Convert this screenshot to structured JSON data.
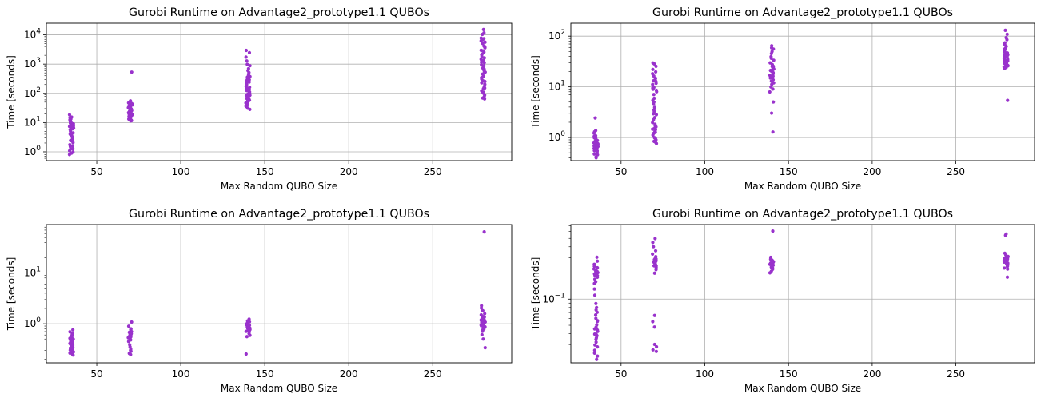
{
  "chart_data": [
    {
      "type": "scatter",
      "title": "Gurobi Runtime on Advantage2_prototype1.1 QUBOs",
      "xlabel": "Max Random QUBO Size",
      "ylabel": "Time [seconds]",
      "yscale": "log",
      "xlim": [
        20,
        297
      ],
      "ylim": [
        0.5,
        25000
      ],
      "grid": true,
      "color": "#9932CC",
      "xticks": [
        50,
        100,
        150,
        200,
        250
      ],
      "yticks": [
        {
          "v": 1,
          "base": "10",
          "exp": "0"
        },
        {
          "v": 10,
          "base": "10",
          "exp": "1"
        },
        {
          "v": 100,
          "base": "10",
          "exp": "2"
        },
        {
          "v": 1000,
          "base": "10",
          "exp": "3"
        },
        {
          "v": 10000,
          "base": "10",
          "exp": "4"
        }
      ],
      "groups": [
        {
          "x": 35,
          "values": [
            0.8,
            0.9,
            1.0,
            1.1,
            1.3,
            1.5,
            1.7,
            2.0,
            2.3,
            2.7,
            3.0,
            3.5,
            4.0,
            4.5,
            5.0,
            5.5,
            6.0,
            6.5,
            7.0,
            7.5,
            8.0,
            8.5,
            9.0,
            9.5,
            10.0,
            11.0,
            12.0,
            13.0,
            14.0,
            15.0,
            16.0,
            18.0,
            1.2,
            2.5,
            6.2,
            9.8,
            12.5,
            4.2,
            7.8,
            1.6
          ]
        },
        {
          "x": 70,
          "values": [
            550,
            11,
            12,
            13,
            14,
            15,
            16,
            17,
            18,
            19,
            20,
            21,
            22,
            23,
            24,
            25,
            27,
            29,
            31,
            33,
            35,
            38,
            42,
            48,
            55,
            13.5,
            16.5,
            19.5,
            22.5,
            26,
            30,
            37,
            45,
            12.2,
            15.5,
            18.5,
            21.5,
            28,
            34,
            41
          ]
        },
        {
          "x": 140,
          "values": [
            3000,
            2500,
            1800,
            1300,
            1000,
            850,
            700,
            600,
            500,
            420,
            360,
            300,
            260,
            220,
            190,
            170,
            150,
            135,
            120,
            110,
            100,
            92,
            85,
            78,
            72,
            66,
            60,
            55,
            50,
            45,
            40,
            36,
            32,
            29,
            140,
            160,
            200,
            240,
            280,
            320,
            380,
            450,
            75,
            95,
            115,
            130,
            65,
            48,
            58,
            88
          ]
        },
        {
          "x": 280,
          "values": [
            15000,
            12000,
            10000,
            8000,
            7000,
            6000,
            5000,
            4200,
            3500,
            3000,
            2500,
            2100,
            1800,
            1500,
            1300,
            1100,
            950,
            820,
            700,
            600,
            520,
            450,
            390,
            340,
            300,
            260,
            230,
            200,
            175,
            155,
            140,
            125,
            110,
            100,
            90,
            80,
            70,
            62,
            480,
            680,
            900,
            1200,
            1600,
            2200,
            2800,
            3800,
            5500,
            7500,
            250,
            360
          ]
        }
      ]
    },
    {
      "type": "scatter",
      "title": "Gurobi Runtime on Advantage2_prototype1.1 QUBOs",
      "xlabel": "Max Random QUBO Size",
      "ylabel": "Time [seconds]",
      "yscale": "log",
      "xlim": [
        20,
        297
      ],
      "ylim": [
        0.35,
        180
      ],
      "grid": true,
      "color": "#9932CC",
      "xticks": [
        50,
        100,
        150,
        200,
        250
      ],
      "yticks": [
        {
          "v": 1,
          "base": "10",
          "exp": "0"
        },
        {
          "v": 10,
          "base": "10",
          "exp": "1"
        },
        {
          "v": 100,
          "base": "10",
          "exp": "2"
        }
      ],
      "groups": [
        {
          "x": 35,
          "values": [
            2.4,
            1.4,
            1.3,
            1.2,
            1.1,
            1.0,
            0.95,
            0.9,
            0.85,
            0.8,
            0.78,
            0.75,
            0.72,
            0.7,
            0.68,
            0.65,
            0.62,
            0.6,
            0.58,
            0.55,
            0.52,
            0.5,
            0.48,
            0.45,
            0.42,
            0.4,
            0.88,
            0.66,
            0.74,
            0.57,
            0.82,
            0.92,
            0.63,
            0.69,
            0.77,
            0.54,
            0.47,
            1.05,
            0.71,
            0.6
          ]
        },
        {
          "x": 70,
          "values": [
            30,
            28,
            25,
            22,
            20,
            18,
            16,
            15,
            14,
            13,
            12,
            11,
            10,
            9.5,
            9,
            8.5,
            8,
            7,
            6,
            5,
            4.5,
            4,
            3.5,
            3,
            2.5,
            2.2,
            2.0,
            1.8,
            1.6,
            1.5,
            1.4,
            1.3,
            1.2,
            1.1,
            1.0,
            0.95,
            0.9,
            0.85,
            0.8,
            0.75,
            12.5,
            9.8,
            1.7,
            1.25,
            3.2,
            5.5,
            2.8,
            1.45
          ]
        },
        {
          "x": 140,
          "values": [
            65,
            60,
            55,
            50,
            45,
            40,
            36,
            33,
            30,
            28,
            26,
            24,
            22,
            21,
            20,
            19,
            18,
            17,
            16,
            15,
            14,
            13,
            12,
            11,
            10,
            9,
            8,
            5.0,
            3.0,
            1.3,
            18.5,
            22.5,
            25,
            16.5,
            19.5
          ]
        },
        {
          "x": 280,
          "values": [
            130,
            110,
            95,
            85,
            75,
            68,
            62,
            57,
            53,
            50,
            47,
            45,
            43,
            41,
            40,
            39,
            38,
            37,
            36,
            35,
            34,
            33,
            32,
            31,
            30,
            29,
            28,
            27,
            26,
            25,
            24,
            23,
            5.5,
            44,
            48,
            42,
            39.5,
            36.5,
            33.5,
            31.5,
            29.5,
            55
          ]
        }
      ]
    },
    {
      "type": "scatter",
      "title": "Gurobi Runtime on Advantage2_prototype1.1 QUBOs",
      "xlabel": "Max Random QUBO Size",
      "ylabel": "Time [seconds]",
      "yscale": "log",
      "xlim": [
        20,
        297
      ],
      "ylim": [
        0.17,
        90
      ],
      "grid": true,
      "color": "#9932CC",
      "xticks": [
        50,
        100,
        150,
        200,
        250
      ],
      "yticks": [
        {
          "v": 1,
          "base": "10",
          "exp": "0"
        },
        {
          "v": 10,
          "base": "10",
          "exp": "1"
        }
      ],
      "groups": [
        {
          "x": 35,
          "values": [
            0.75,
            0.7,
            0.65,
            0.6,
            0.55,
            0.52,
            0.5,
            0.48,
            0.46,
            0.44,
            0.42,
            0.4,
            0.38,
            0.36,
            0.35,
            0.34,
            0.33,
            0.32,
            0.31,
            0.3,
            0.29,
            0.28,
            0.27,
            0.26,
            0.25,
            0.24,
            0.45,
            0.37,
            0.43,
            0.39,
            0.41,
            0.33,
            0.29,
            0.26
          ]
        },
        {
          "x": 70,
          "values": [
            1.1,
            0.9,
            0.8,
            0.75,
            0.7,
            0.68,
            0.66,
            0.64,
            0.62,
            0.6,
            0.58,
            0.56,
            0.54,
            0.52,
            0.5,
            0.48,
            0.45,
            0.38,
            0.35,
            0.32,
            0.3,
            0.28,
            0.26,
            0.25,
            0.63,
            0.59,
            0.55
          ]
        },
        {
          "x": 140,
          "values": [
            1.25,
            1.15,
            1.1,
            1.05,
            1.0,
            0.95,
            0.92,
            0.9,
            0.88,
            0.85,
            0.82,
            0.8,
            0.78,
            0.75,
            0.72,
            0.7,
            0.68,
            0.65,
            0.6,
            0.55,
            0.25,
            0.87,
            0.83,
            0.77,
            0.93
          ]
        },
        {
          "x": 280,
          "values": [
            65,
            2.3,
            2.0,
            1.8,
            1.6,
            1.5,
            1.4,
            1.35,
            1.3,
            1.25,
            1.2,
            1.15,
            1.1,
            1.05,
            1.0,
            0.97,
            0.95,
            0.92,
            0.9,
            0.88,
            0.85,
            0.82,
            0.8,
            0.75,
            0.7,
            0.6,
            0.5,
            0.33,
            1.18,
            1.08,
            1.02,
            0.98,
            1.12,
            1.22,
            1.28,
            0.86
          ]
        }
      ]
    },
    {
      "type": "scatter",
      "title": "Gurobi Runtime on Advantage2_prototype1.1 QUBOs",
      "xlabel": "Max Random QUBO Size",
      "ylabel": "Time [seconds]",
      "yscale": "log",
      "xlim": [
        20,
        297
      ],
      "ylim": [
        0.0185,
        0.72
      ],
      "grid": true,
      "color": "#9932CC",
      "xticks": [
        50,
        100,
        150,
        200,
        250
      ],
      "yticks": [
        {
          "v": 0.1,
          "base": "10",
          "exp": "−1"
        }
      ],
      "groups": [
        {
          "x": 35,
          "values": [
            0.3,
            0.27,
            0.25,
            0.24,
            0.23,
            0.22,
            0.215,
            0.21,
            0.205,
            0.2,
            0.195,
            0.19,
            0.185,
            0.18,
            0.17,
            0.16,
            0.15,
            0.13,
            0.11,
            0.09,
            0.08,
            0.075,
            0.07,
            0.065,
            0.06,
            0.055,
            0.05,
            0.047,
            0.044,
            0.042,
            0.04,
            0.038,
            0.036,
            0.034,
            0.032,
            0.03,
            0.028,
            0.026,
            0.024,
            0.022,
            0.02,
            0.208,
            0.198,
            0.188,
            0.057,
            0.045,
            0.039
          ]
        },
        {
          "x": 70,
          "values": [
            0.5,
            0.45,
            0.4,
            0.36,
            0.33,
            0.31,
            0.3,
            0.29,
            0.28,
            0.27,
            0.265,
            0.26,
            0.255,
            0.25,
            0.245,
            0.24,
            0.23,
            0.22,
            0.2,
            0.065,
            0.055,
            0.048,
            0.03,
            0.028,
            0.026,
            0.025,
            0.275,
            0.262,
            0.248,
            0.285
          ]
        },
        {
          "x": 140,
          "values": [
            0.6,
            0.3,
            0.29,
            0.28,
            0.275,
            0.27,
            0.265,
            0.26,
            0.255,
            0.25,
            0.245,
            0.24,
            0.235,
            0.23,
            0.22,
            0.21,
            0.2,
            0.272,
            0.262,
            0.252,
            0.268,
            0.258
          ]
        },
        {
          "x": 280,
          "values": [
            0.56,
            0.54,
            0.34,
            0.32,
            0.31,
            0.3,
            0.295,
            0.29,
            0.285,
            0.28,
            0.275,
            0.27,
            0.265,
            0.26,
            0.255,
            0.25,
            0.245,
            0.24,
            0.235,
            0.23,
            0.22,
            0.18,
            0.288,
            0.278,
            0.268,
            0.258,
            0.298,
            0.305
          ]
        }
      ]
    }
  ]
}
